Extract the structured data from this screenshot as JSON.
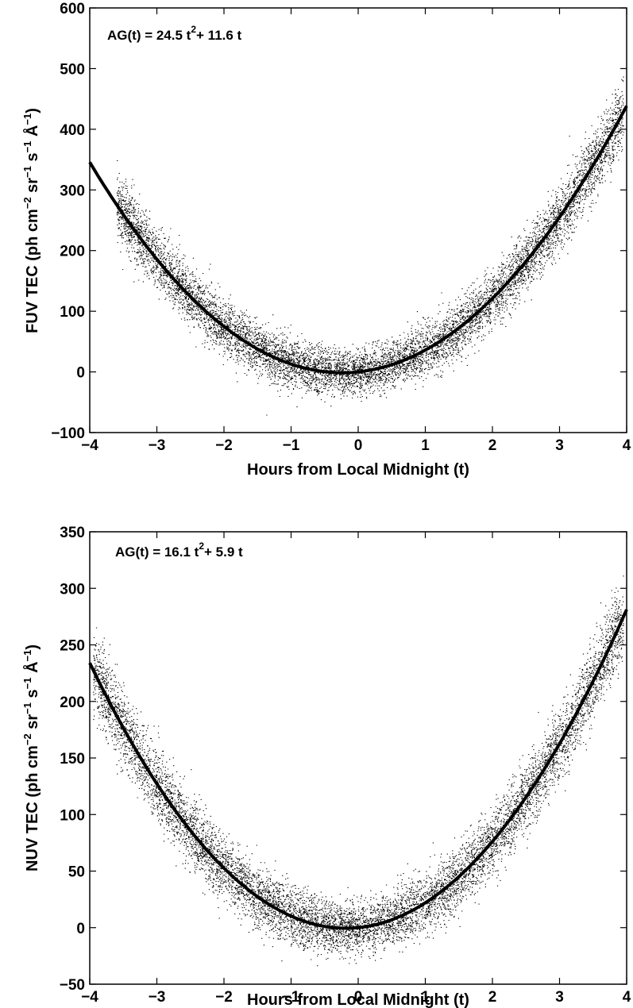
{
  "chart_data": [
    {
      "type": "scatter",
      "panel": "top",
      "xlabel": "Hours from Local Midnight (t)",
      "ylabel_main": "FUV TEC (ph cm",
      "ylabel_sup1": "−2",
      "ylabel_mid1": " sr",
      "ylabel_sup2": "−1",
      "ylabel_mid2": " s",
      "ylabel_sup3": "−1",
      "ylabel_mid3": " Å",
      "ylabel_sup4": "−1",
      "ylabel_end": ")",
      "annotation": {
        "prefix": "AG(t) = 24.5 t",
        "sup": "2",
        "suffix": "+ 11.6 t"
      },
      "fit": {
        "a": 24.5,
        "b": 11.6
      },
      "xlim": [
        -4,
        4
      ],
      "ylim": [
        -100,
        600
      ],
      "xticks": [
        -4,
        -3,
        -2,
        -1,
        0,
        1,
        2,
        3,
        4
      ],
      "yticks": [
        -100,
        0,
        100,
        200,
        300,
        400,
        500,
        600
      ],
      "xtick_labels": [
        "−4",
        "−3",
        "−2",
        "−1",
        "0",
        "1",
        "2",
        "3",
        "4"
      ],
      "ytick_labels": [
        "−100",
        "0",
        "100",
        "200",
        "300",
        "400",
        "500",
        "600"
      ],
      "series": [
        {
          "description_style": "dense black point cloud scattered around fitted curve",
          "spread": 35,
          "x_range": [
            -3.6,
            3.95
          ]
        }
      ]
    },
    {
      "type": "scatter",
      "panel": "bottom",
      "xlabel": "Hours from Local Midnight (t)",
      "ylabel_main": "NUV TEC (ph cm",
      "ylabel_sup1": "−2",
      "ylabel_mid1": " sr",
      "ylabel_sup2": "−1",
      "ylabel_mid2": " s",
      "ylabel_sup3": "−1",
      "ylabel_mid3": " Å",
      "ylabel_sup4": "−1",
      "ylabel_end": ")",
      "annotation": {
        "prefix": "AG(t) = 16.1 t",
        "sup": "2",
        "suffix": "+ 5.9 t"
      },
      "fit": {
        "a": 16.1,
        "b": 5.9
      },
      "xlim": [
        -4,
        4
      ],
      "ylim": [
        -50,
        350
      ],
      "xticks": [
        -4,
        -3,
        -2,
        -1,
        0,
        1,
        2,
        3,
        4
      ],
      "yticks": [
        -50,
        0,
        50,
        100,
        150,
        200,
        250,
        300,
        350
      ],
      "xtick_labels": [
        "−4",
        "−3",
        "−2",
        "−1",
        "0",
        "1",
        "2",
        "3",
        "4"
      ],
      "ytick_labels": [
        "−50",
        "0",
        "50",
        "100",
        "150",
        "200",
        "250",
        "300",
        "350"
      ],
      "series": [
        {
          "description_style": "dense black point cloud scattered around fitted curve",
          "spread": 22,
          "x_range": [
            -3.95,
            3.95
          ]
        }
      ]
    }
  ]
}
